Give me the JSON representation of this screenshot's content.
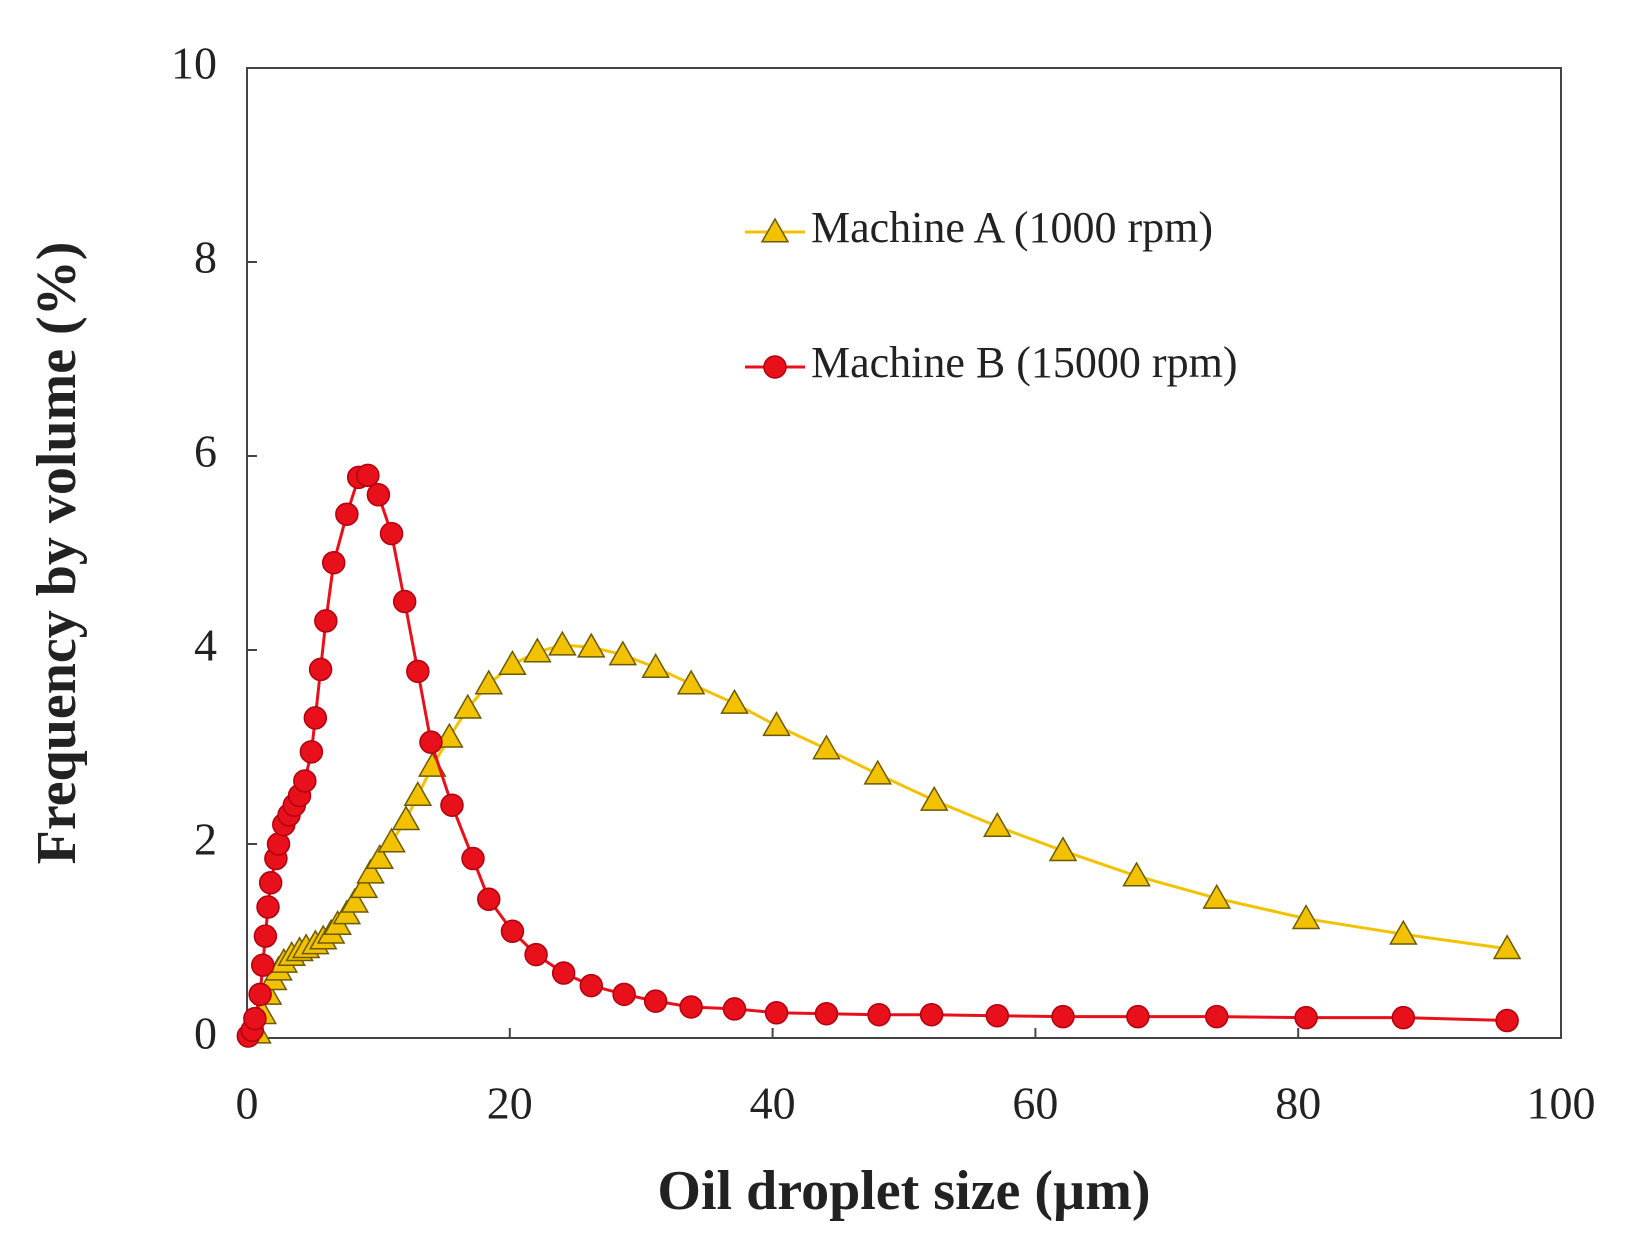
{
  "chart_data": {
    "type": "line",
    "xlabel": "Oil droplet size (µm)",
    "ylabel": "Frequency by volume (%)",
    "xlim": [
      0,
      100
    ],
    "xticks": [
      0,
      20,
      40,
      60,
      80,
      100
    ],
    "ylim": [
      0,
      10
    ],
    "yticks": [
      0,
      2,
      4,
      6,
      8,
      10
    ],
    "legend": "upper right",
    "series": [
      {
        "name": "Machine A (1000 rpm)",
        "color": "#f2c200",
        "marker": "triangle",
        "x": [
          0.8,
          1.2,
          1.6,
          2.0,
          2.4,
          2.8,
          3.4,
          4.0,
          4.5,
          5.2,
          5.8,
          6.4,
          6.9,
          7.6,
          8.2,
          8.9,
          9.4,
          10.1,
          11.0,
          12.1,
          13.0,
          14.1,
          15.4,
          16.8,
          18.4,
          20.2,
          22.1,
          24.0,
          26.2,
          28.6,
          31.1,
          33.8,
          37.1,
          40.3,
          44.1,
          48.0,
          52.3,
          57.1,
          62.1,
          67.7,
          73.8,
          80.6,
          88.0,
          95.9
        ],
        "values": [
          0.05,
          0.25,
          0.45,
          0.6,
          0.7,
          0.78,
          0.85,
          0.9,
          0.93,
          0.97,
          1.02,
          1.08,
          1.17,
          1.28,
          1.4,
          1.55,
          1.7,
          1.85,
          2.02,
          2.25,
          2.5,
          2.8,
          3.1,
          3.4,
          3.65,
          3.85,
          3.98,
          4.05,
          4.03,
          3.95,
          3.82,
          3.65,
          3.45,
          3.22,
          2.98,
          2.72,
          2.45,
          2.18,
          1.93,
          1.67,
          1.44,
          1.23,
          1.07,
          0.92
        ]
      },
      {
        "name": "Machine B (15000 rpm)",
        "color": "#e8101a",
        "marker": "circle",
        "x": [
          0.1,
          0.4,
          0.6,
          1.0,
          1.2,
          1.4,
          1.6,
          1.8,
          2.2,
          2.4,
          2.8,
          3.2,
          3.6,
          4.0,
          4.4,
          4.9,
          5.2,
          5.6,
          6.0,
          6.6,
          7.6,
          8.5,
          9.2,
          10.0,
          11.0,
          12.0,
          13.0,
          14.0,
          15.6,
          17.2,
          18.4,
          20.2,
          22.0,
          24.1,
          26.2,
          28.7,
          31.1,
          33.8,
          37.1,
          40.3,
          44.1,
          48.1,
          52.1,
          57.1,
          62.1,
          67.8,
          73.8,
          80.6,
          88.0,
          95.9
        ],
        "values": [
          0.02,
          0.08,
          0.2,
          0.45,
          0.75,
          1.05,
          1.35,
          1.6,
          1.85,
          2.0,
          2.2,
          2.3,
          2.4,
          2.5,
          2.65,
          2.95,
          3.3,
          3.8,
          4.3,
          4.9,
          5.4,
          5.78,
          5.8,
          5.6,
          5.2,
          4.5,
          3.78,
          3.05,
          2.4,
          1.85,
          1.43,
          1.1,
          0.86,
          0.67,
          0.54,
          0.45,
          0.38,
          0.32,
          0.3,
          0.26,
          0.25,
          0.24,
          0.24,
          0.23,
          0.22,
          0.22,
          0.22,
          0.21,
          0.21,
          0.18
        ]
      }
    ]
  }
}
